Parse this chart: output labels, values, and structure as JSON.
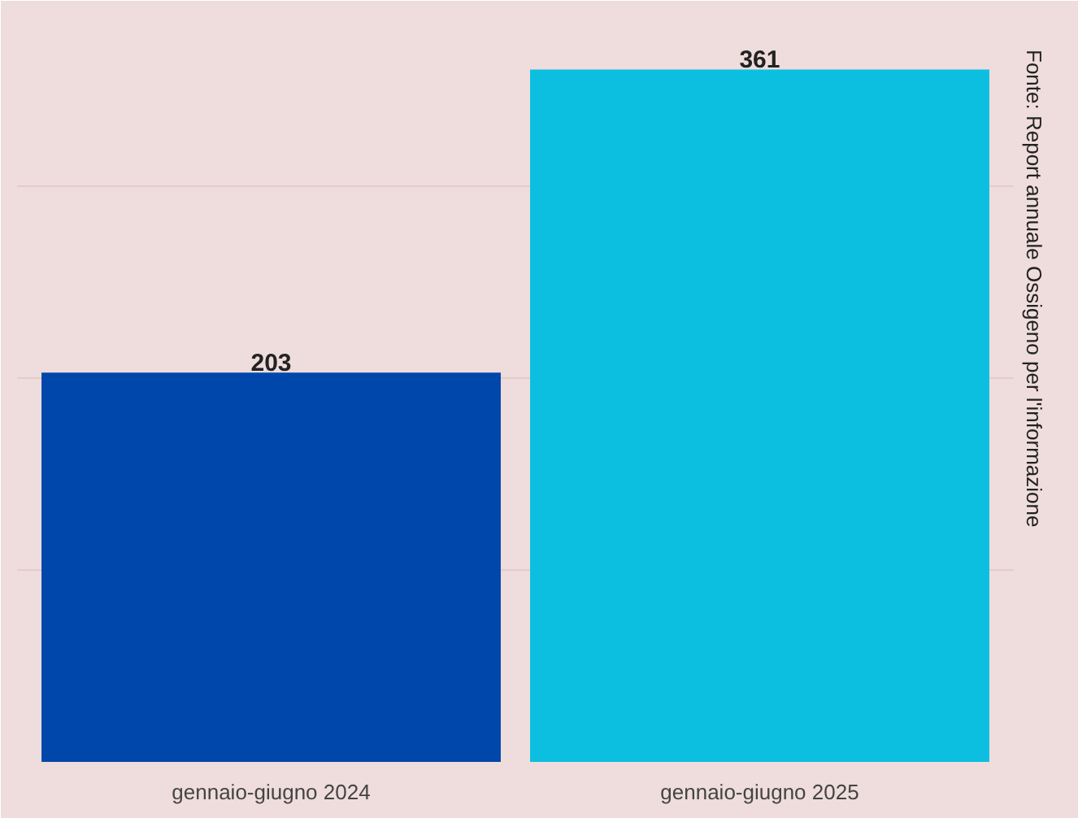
{
  "chart_data": {
    "type": "bar",
    "categories": [
      "gennaio-giugno 2024",
      "gennaio-giugno 2025"
    ],
    "values": [
      203,
      361
    ],
    "colors": [
      "#0047ab",
      "#0cbfe0"
    ],
    "data_labels": true,
    "ylim": [
      0,
      390
    ],
    "yticks": [
      {
        "value": 0,
        "label": null
      },
      {
        "value": 100,
        "label": null
      },
      {
        "value": 200,
        "label": null
      },
      {
        "value": 300,
        "label": null
      }
    ],
    "grid": "y",
    "tick_labels": "x",
    "annotations": [
      "Fonte: Report annuale Ossigeno per l'informazione"
    ]
  }
}
